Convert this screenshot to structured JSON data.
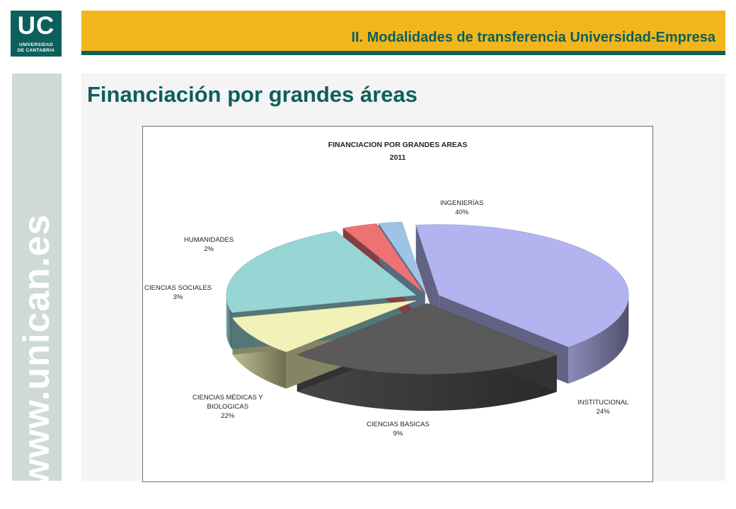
{
  "logo": {
    "letters": "UC",
    "line1": "UNIVERSIDAD",
    "line2": "DE CANTABRIA"
  },
  "header": {
    "title": "II. Modalidades de transferencia Universidad-Empresa"
  },
  "sidebar": {
    "text": "www.unican.es"
  },
  "page": {
    "title": "Financiación por grandes áreas"
  },
  "colors": {
    "brand_teal": "#0d5f5c",
    "brand_yellow": "#f2b61c",
    "sidebar_bg": "#cfdad7"
  },
  "chart_data": {
    "type": "pie",
    "title": "FINANCIACION POR GRANDES AREAS",
    "subtitle": "2011",
    "three_d": true,
    "exploded": true,
    "slices": [
      {
        "label": "INGENIERÍAS",
        "value": 40,
        "value_label": "40%",
        "color": "#b3b3f0"
      },
      {
        "label": "INSTITUCIONAL",
        "value": 24,
        "value_label": "24%",
        "color": "#5a5a5a"
      },
      {
        "label": "CIENCIAS BASICAS",
        "value": 9,
        "value_label": "9%",
        "color": "#f2f2b8"
      },
      {
        "label": "CIENCIAS MÉDICAS Y BIOLOGICAS",
        "label_lines": [
          "CIENCIAS MÉDICAS Y",
          "BIOLOGICAS"
        ],
        "value": 22,
        "value_label": "22%",
        "color": "#98d6d6"
      },
      {
        "label": "CIENCIAS SOCIALES",
        "value": 3,
        "value_label": "3%",
        "color": "#ee7272"
      },
      {
        "label": "HUMANIDADES",
        "value": 2,
        "value_label": "2%",
        "color": "#9ec3e6"
      }
    ]
  }
}
